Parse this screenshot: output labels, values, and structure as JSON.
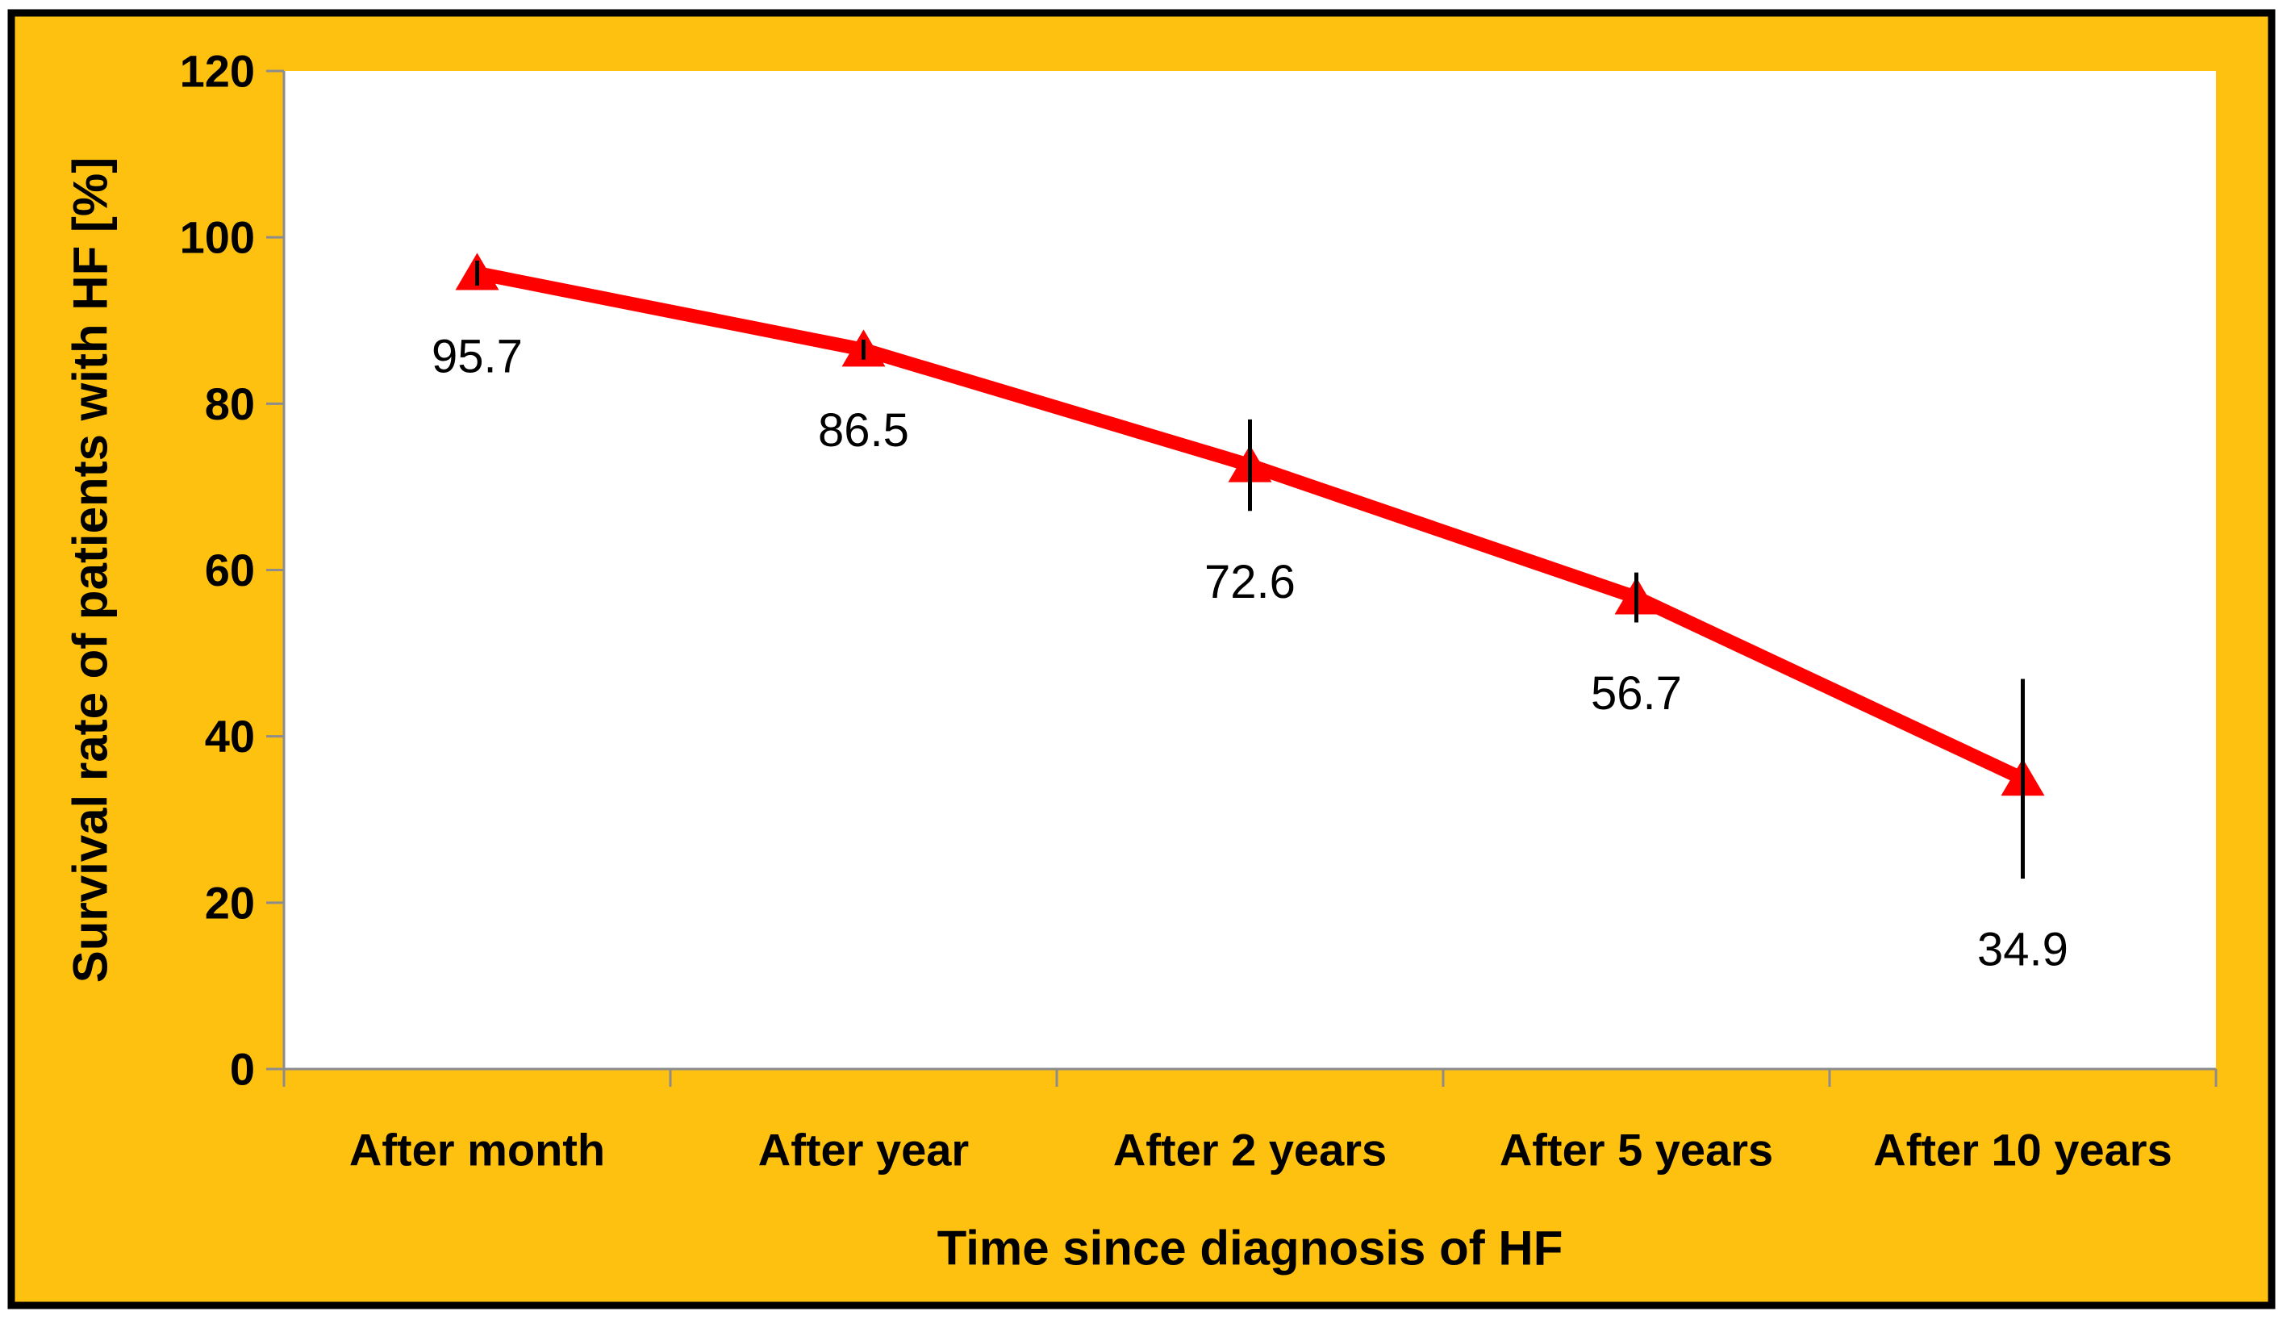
{
  "chart_data": {
    "type": "line",
    "title": "",
    "categories": [
      "After month",
      "After year",
      "After 2 years",
      "After 5 years",
      "After 10 years"
    ],
    "series": [
      {
        "name": "Survival rate of patients with HF",
        "values": [
          95.7,
          86.5,
          72.6,
          56.7,
          34.9
        ]
      }
    ],
    "data_labels": [
      "95.7",
      "86.5",
      "72.6",
      "56.7",
      "34.9"
    ],
    "error_bars": {
      "plus": [
        1.5,
        1.2,
        5.5,
        3.0,
        12.0
      ],
      "minus": [
        1.5,
        1.2,
        5.5,
        3.0,
        12.0
      ]
    },
    "xlabel": "Time since diagnosis of HF",
    "ylabel": "Survival rate of patients with HF [%]",
    "ylim": [
      0,
      120
    ],
    "yticks": [
      0,
      20,
      40,
      60,
      80,
      100,
      120
    ],
    "grid": false,
    "legend": "none",
    "marker": "triangle-up",
    "colors": {
      "line": "#FF0000",
      "marker": "#FF0000",
      "error_bar": "#000000",
      "axis": "#8C8C8C",
      "text": "#000000",
      "background": "#FFC110",
      "plot_background": "#FFFFFF",
      "border": "#000000",
      "page_background": "#FFFFFF"
    }
  }
}
